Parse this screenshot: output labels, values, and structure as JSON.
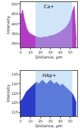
{
  "chart_data": [
    {
      "type": "area",
      "x_label": "Distance, µm",
      "y_label": "Intensity",
      "x": [
        0,
        2,
        4,
        6,
        8,
        10,
        12,
        14,
        16,
        18,
        20,
        22,
        24,
        26,
        28,
        30,
        32,
        34,
        36,
        38,
        40,
        42,
        44,
        46,
        48,
        50,
        52,
        54,
        56
      ],
      "series": [
        {
          "name": "Ca+",
          "color": "#b23cc4",
          "values": [
            440,
            470,
            420,
            380,
            360,
            350,
            345,
            340,
            335,
            333,
            330,
            332,
            335,
            333,
            338,
            340,
            342,
            345,
            350,
            355,
            360,
            368,
            375,
            385,
            400,
            420,
            460,
            490,
            320
          ]
        }
      ],
      "highlight": [
        15,
        52
      ],
      "xlim": [
        0,
        57
      ],
      "xticks": [
        0,
        10,
        20,
        30,
        40,
        50
      ],
      "ylim": [
        280,
        510
      ],
      "yticks": [
        300,
        350,
        400,
        450,
        500
      ],
      "grid": false
    },
    {
      "type": "area",
      "x_label": "Distance, µm",
      "y_label": "Intensity",
      "x": [
        0,
        2,
        4,
        6,
        8,
        10,
        12,
        14,
        16,
        18,
        20,
        22,
        24,
        26,
        28,
        30,
        32,
        34,
        36,
        38,
        40,
        42,
        44,
        46,
        48,
        50,
        52,
        54,
        56
      ],
      "series": [
        {
          "name": "HAp+",
          "color": "#2a3cc8",
          "values": [
            121,
            122,
            124,
            126,
            127,
            128,
            129,
            130,
            131,
            130,
            131,
            132,
            131,
            130,
            131,
            132,
            131,
            130,
            131,
            130,
            129,
            130,
            129,
            128,
            127,
            126,
            125,
            123,
            120
          ]
        }
      ],
      "highlight": [
        15,
        52
      ],
      "xlim": [
        0,
        57
      ],
      "xticks": [
        0,
        10,
        20,
        30,
        40,
        50
      ],
      "ylim": [
        113,
        137
      ],
      "yticks": [
        115,
        120,
        125,
        130,
        135
      ],
      "grid": false
    }
  ]
}
